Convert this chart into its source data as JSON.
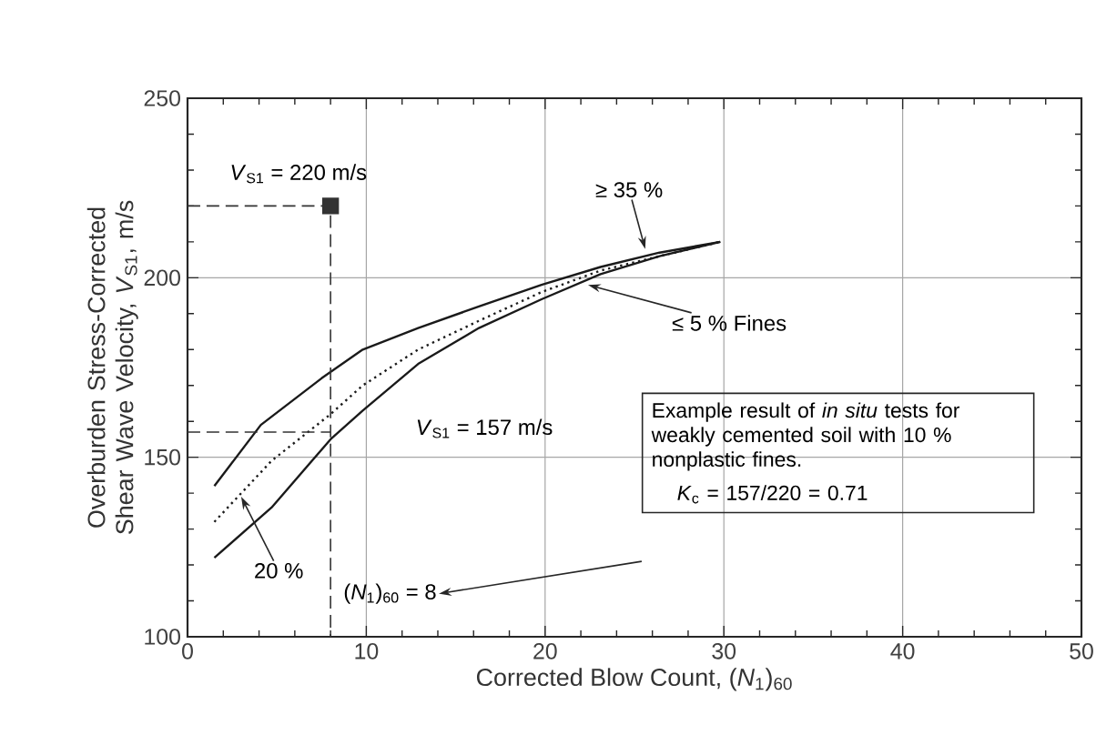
{
  "chart_data": {
    "type": "line",
    "xlabel": "Corrected Blow Count, (*N*$_{1}$)$_{60}$",
    "ylabel": "Overburden Stress-Corrected Shear Wave Velocity, *V*$_{S1}$, m/s",
    "xlim": [
      0,
      50
    ],
    "ylim": [
      100,
      250
    ],
    "xticks": [
      0,
      10,
      20,
      30,
      40,
      50
    ],
    "yticks": [
      100,
      150,
      200,
      250
    ],
    "grid": true,
    "marker": "none",
    "series": [
      {
        "type": "line",
        "color": "#1a1a1a",
        "line_style": "solid",
        "x": [
          1.5,
          4.1,
          7.5,
          9.8,
          12.9,
          16.3,
          19.8,
          23.1,
          26.4,
          29.8
        ],
        "values": [
          142,
          159,
          172,
          180,
          186,
          192,
          198,
          203,
          207,
          210
        ]
      },
      {
        "type": "line",
        "color": "#1a1a1a",
        "line_style": "dotted",
        "x": [
          1.5,
          4.7,
          8.0,
          9.8,
          12.9,
          16.3,
          19.8,
          23.1,
          26.4,
          29.8
        ],
        "values": [
          132,
          149,
          162,
          170,
          180,
          188,
          196,
          202,
          206,
          210
        ]
      },
      {
        "type": "line",
        "color": "#1a1a1a",
        "line_style": "solid",
        "x": [
          1.5,
          4.7,
          8.0,
          9.8,
          12.9,
          16.3,
          19.8,
          23.1,
          26.4,
          29.8
        ],
        "values": [
          122,
          136,
          155,
          163,
          176,
          186,
          194,
          201,
          206,
          210
        ]
      },
      {
        "type": "line",
        "color": "#333333",
        "line_style": "dashed",
        "x": [
          0,
          8,
          8
        ],
        "values": [
          220,
          220,
          100
        ]
      },
      {
        "type": "line",
        "color": "#333333",
        "line_style": "dashed",
        "x": [
          0,
          8
        ],
        "values": [
          157,
          157
        ]
      },
      {
        "type": "scatter",
        "color": "#333333",
        "marker": "square",
        "x": [
          8
        ],
        "values": [
          220
        ]
      }
    ],
    "annotations": [
      {
        "text": "*V*$_{S1}$ = 220 m/s",
        "x": 8,
        "y": 220
      },
      {
        "text": "≥ 35 %",
        "x": 25.6,
        "y": 208
      },
      {
        "text": "≤ 5 % Fines",
        "x": 22.4,
        "y": 198
      },
      "*V*$_{S1}$ = 157 m/s",
      {
        "text": "20 %",
        "x": 3.0,
        "y": 139
      },
      "(*N*$_{1}$)$_{60}$ = 8",
      "Example result of *in situ* tests for weakly cemented soil with 10 % nonplastic fines.",
      "*K*$_{c}$ = 157/220 = 0.71"
    ]
  }
}
